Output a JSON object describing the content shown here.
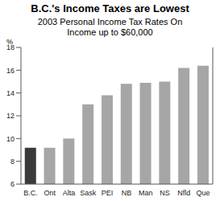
{
  "chart_data": {
    "type": "bar",
    "title": "B.C.'s Income Taxes are Lowest",
    "subtitle": "2003 Personal Income Tax Rates On Income up to $60,000",
    "y_label": "%",
    "categories": [
      "B.C.",
      "Ont",
      "Alta",
      "Sask",
      "PEI",
      "NB",
      "Man",
      "NS",
      "Nfld",
      "Que"
    ],
    "values": [
      9.2,
      9.2,
      10.0,
      13.0,
      13.8,
      14.8,
      14.9,
      15.0,
      16.2,
      16.4
    ],
    "colors": [
      "#3a3a3a",
      "#a6a6a6",
      "#a6a6a6",
      "#a6a6a6",
      "#a6a6a6",
      "#a6a6a6",
      "#a6a6a6",
      "#a6a6a6",
      "#a6a6a6",
      "#a6a6a6"
    ],
    "ylim": [
      6,
      18
    ],
    "yticks": [
      6,
      8,
      10,
      12,
      14,
      16,
      18
    ],
    "grid": false
  }
}
